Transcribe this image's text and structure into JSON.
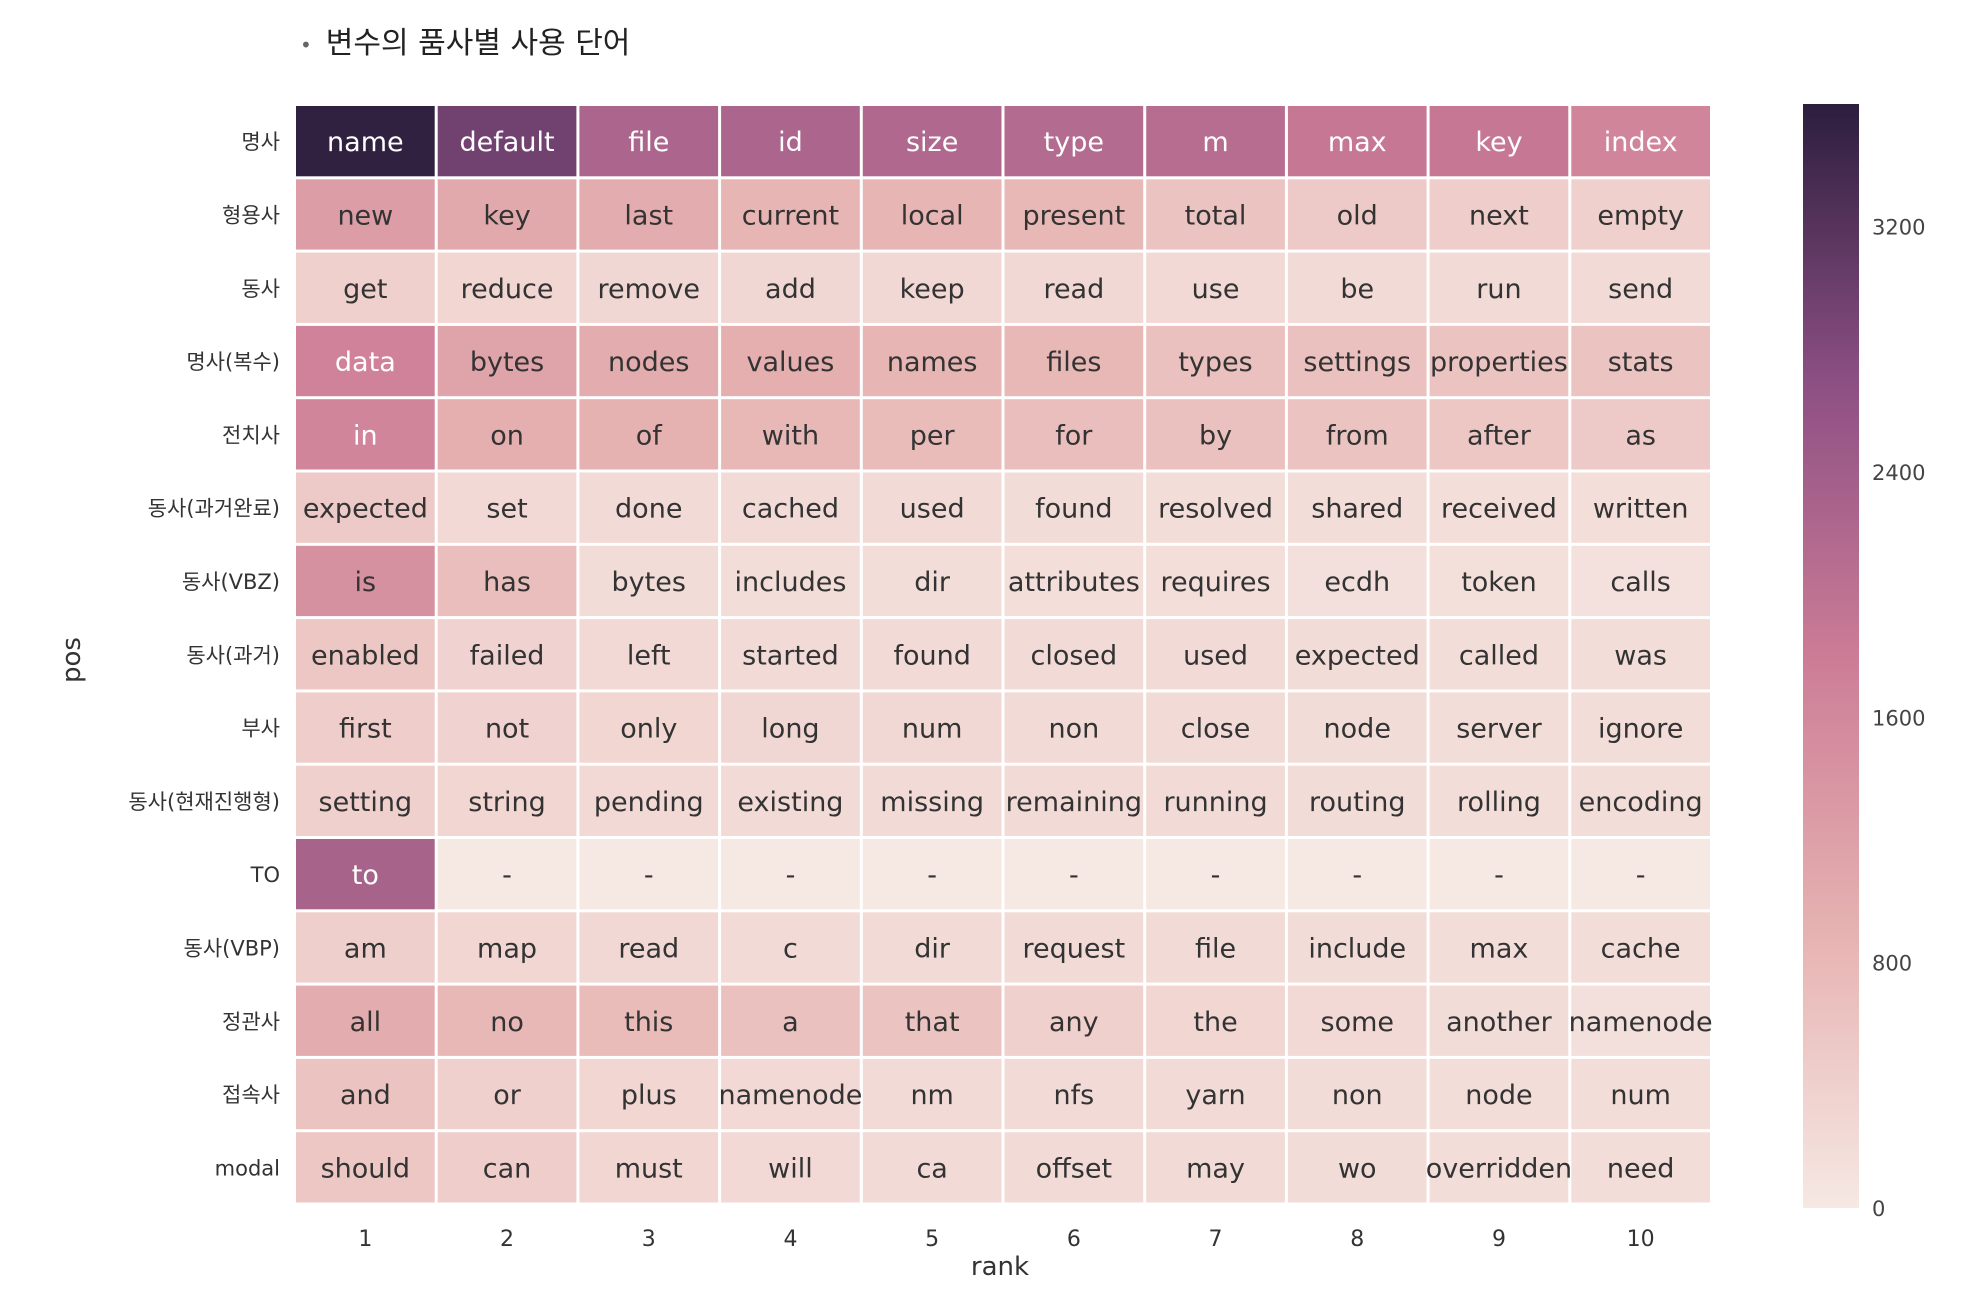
{
  "heading": "변수의 품사별 사용 단어",
  "chart_data": {
    "type": "heatmap",
    "xlabel": "rank",
    "ylabel": "pos",
    "columns": [
      "1",
      "2",
      "3",
      "4",
      "5",
      "6",
      "7",
      "8",
      "9",
      "10"
    ],
    "rows": [
      {
        "pos": "명사",
        "words": [
          "name",
          "default",
          "file",
          "id",
          "size",
          "type",
          "m",
          "max",
          "key",
          "index"
        ],
        "values": [
          3550,
          2950,
          2250,
          2250,
          2200,
          2150,
          2100,
          1900,
          1900,
          1650
        ]
      },
      {
        "pos": "형용사",
        "words": [
          "new",
          "key",
          "last",
          "current",
          "local",
          "present",
          "total",
          "old",
          "next",
          "empty"
        ],
        "values": [
          1250,
          1050,
          1000,
          850,
          850,
          800,
          600,
          500,
          450,
          400
        ]
      },
      {
        "pos": "동사",
        "words": [
          "get",
          "reduce",
          "remove",
          "add",
          "keep",
          "read",
          "use",
          "be",
          "run",
          "send"
        ],
        "values": [
          400,
          300,
          280,
          280,
          270,
          260,
          250,
          240,
          230,
          220
        ]
      },
      {
        "pos": "명사(복수)",
        "words": [
          "data",
          "bytes",
          "nodes",
          "values",
          "names",
          "files",
          "types",
          "settings",
          "properties",
          "stats"
        ],
        "values": [
          1700,
          1150,
          1000,
          950,
          850,
          800,
          650,
          650,
          600,
          600
        ]
      },
      {
        "pos": "전치사",
        "words": [
          "in",
          "on",
          "of",
          "with",
          "per",
          "for",
          "by",
          "from",
          "after",
          "as"
        ],
        "values": [
          1650,
          950,
          900,
          800,
          750,
          700,
          650,
          600,
          550,
          500
        ]
      },
      {
        "pos": "동사(과거완료)",
        "words": [
          "expected",
          "set",
          "done",
          "cached",
          "used",
          "found",
          "resolved",
          "shared",
          "received",
          "written"
        ],
        "values": [
          500,
          250,
          230,
          220,
          210,
          200,
          190,
          180,
          170,
          160
        ]
      },
      {
        "pos": "동사(VBZ)",
        "words": [
          "is",
          "has",
          "bytes",
          "includes",
          "dir",
          "attributes",
          "requires",
          "ecdh",
          "token",
          "calls"
        ],
        "values": [
          1450,
          700,
          200,
          190,
          180,
          170,
          160,
          150,
          140,
          130
        ]
      },
      {
        "pos": "동사(과거)",
        "words": [
          "enabled",
          "failed",
          "left",
          "started",
          "found",
          "closed",
          "used",
          "expected",
          "called",
          "was"
        ],
        "values": [
          550,
          350,
          250,
          240,
          230,
          220,
          210,
          200,
          190,
          180
        ]
      },
      {
        "pos": "부사",
        "words": [
          "first",
          "not",
          "only",
          "long",
          "num",
          "non",
          "close",
          "node",
          "server",
          "ignore"
        ],
        "values": [
          450,
          350,
          300,
          280,
          260,
          240,
          220,
          200,
          190,
          180
        ]
      },
      {
        "pos": "동사(현재진행형)",
        "words": [
          "setting",
          "string",
          "pending",
          "existing",
          "missing",
          "remaining",
          "running",
          "routing",
          "rolling",
          "encoding"
        ],
        "values": [
          400,
          300,
          250,
          240,
          230,
          220,
          210,
          200,
          190,
          180
        ]
      },
      {
        "pos": "TO",
        "words": [
          "to",
          "-",
          "-",
          "-",
          "-",
          "-",
          "-",
          "-",
          "-",
          "-"
        ],
        "values": [
          2300,
          0,
          0,
          0,
          0,
          0,
          0,
          0,
          0,
          0
        ]
      },
      {
        "pos": "동사(VBP)",
        "words": [
          "am",
          "map",
          "read",
          "c",
          "dir",
          "request",
          "file",
          "include",
          "max",
          "cache"
        ],
        "values": [
          420,
          300,
          260,
          240,
          230,
          220,
          210,
          200,
          190,
          180
        ]
      },
      {
        "pos": "정관사",
        "words": [
          "all",
          "no",
          "this",
          "a",
          "that",
          "any",
          "the",
          "some",
          "another",
          "namenode"
        ],
        "values": [
          1000,
          800,
          750,
          650,
          600,
          400,
          300,
          250,
          200,
          150
        ]
      },
      {
        "pos": "접속사",
        "words": [
          "and",
          "or",
          "plus",
          "namenode",
          "nm",
          "nfs",
          "yarn",
          "non",
          "node",
          "num"
        ],
        "values": [
          600,
          400,
          300,
          250,
          230,
          220,
          210,
          200,
          190,
          180
        ]
      },
      {
        "pos": "modal",
        "words": [
          "should",
          "can",
          "must",
          "will",
          "ca",
          "offset",
          "may",
          "wo",
          "overridden",
          "need"
        ],
        "values": [
          550,
          450,
          300,
          250,
          230,
          220,
          210,
          200,
          190,
          180
        ]
      }
    ],
    "colorbar": {
      "min": 0,
      "max": 3600,
      "ticks": [
        0,
        800,
        1600,
        2400,
        3200
      ]
    },
    "colors": {
      "low": "#f6e8e3",
      "mid": "#cc7c96",
      "high": "#2c1e3d"
    }
  }
}
